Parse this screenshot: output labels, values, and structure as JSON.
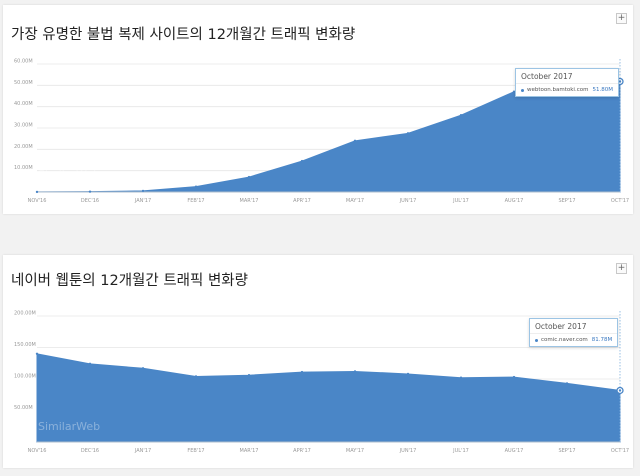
{
  "colors": {
    "area": "#4a86c7",
    "grid": "#e6e6e6",
    "tooltip_border": "#9cc4e4"
  },
  "watermark": "SimilarWeb",
  "expand_label": "+",
  "chart_data": [
    {
      "type": "area",
      "title": "가장 유명한 불법 복제 사이트의 12개월간 트래픽 변화량",
      "categories": [
        "NOV'16",
        "DEC'16",
        "JAN'17",
        "FEB'17",
        "MAR'17",
        "APR'17",
        "MAY'17",
        "JUN'17",
        "JUL'17",
        "AUG'17",
        "SEP'17",
        "OCT'17"
      ],
      "series": [
        {
          "name": "webtoon.bamtoki.com",
          "values": [
            0.05,
            0.15,
            0.5,
            2.5,
            7,
            14.5,
            24,
            27.5,
            36,
            47,
            51.5,
            51.8
          ]
        }
      ],
      "ylim": [
        0,
        60
      ],
      "yticks": [
        {
          "value": 10,
          "label": "10.00M"
        },
        {
          "value": 20,
          "label": "20.00M"
        },
        {
          "value": 30,
          "label": "30.00M"
        },
        {
          "value": 40,
          "label": "40.00M"
        },
        {
          "value": 50,
          "label": "50.00M"
        },
        {
          "value": 60,
          "label": "60.00M"
        }
      ],
      "grid": true,
      "tooltip": {
        "title": "October 2017",
        "site": "webtoon.bamtoki.com",
        "value": "51.80M"
      }
    },
    {
      "type": "area",
      "title": "네이버 웹툰의 12개월간 트래픽 변화량",
      "categories": [
        "NOV'16",
        "DEC'16",
        "JAN'17",
        "FEB'17",
        "MAR'17",
        "APR'17",
        "MAY'17",
        "JUN'17",
        "JUL'17",
        "AUG'17",
        "SEP'17",
        "OCT'17"
      ],
      "series": [
        {
          "name": "comic.naver.com",
          "values": [
            140,
            124,
            117,
            104,
            106,
            111,
            112,
            108,
            102,
            103,
            93,
            81.78
          ]
        }
      ],
      "ylim": [
        0,
        200
      ],
      "yticks": [
        {
          "value": 50,
          "label": "50.00M"
        },
        {
          "value": 100,
          "label": "100.00M"
        },
        {
          "value": 150,
          "label": "150.00M"
        },
        {
          "value": 200,
          "label": "200.00M"
        }
      ],
      "grid": true,
      "tooltip": {
        "title": "October 2017",
        "site": "comic.naver.com",
        "value": "81.78M"
      }
    }
  ]
}
